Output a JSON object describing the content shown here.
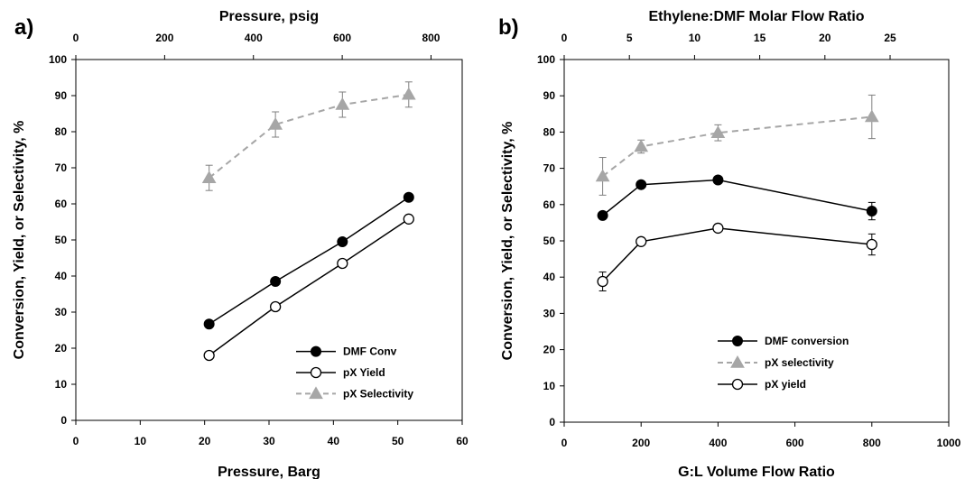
{
  "chart_data": [
    {
      "type": "line",
      "panel_label": "a)",
      "xlabel": "Pressure, Barg",
      "ylabel": "Conversion, Yield, or Selectivity, %",
      "xlim": [
        0,
        60
      ],
      "ylim": [
        0,
        100
      ],
      "xticks": [
        0,
        10,
        20,
        30,
        40,
        50,
        60
      ],
      "yticks": [
        0,
        10,
        20,
        30,
        40,
        50,
        60,
        70,
        80,
        90,
        100
      ],
      "x2label": "Pressure, psig",
      "x2lim": [
        0,
        870.2
      ],
      "x2ticks": [
        0,
        200,
        400,
        600,
        800
      ],
      "legend_position": "lower-right",
      "series": [
        {
          "name": "DMF Conv",
          "style": "filled-circle",
          "color": "#000000",
          "dashed": false,
          "x": [
            20.7,
            31.0,
            41.4,
            51.7
          ],
          "y": [
            26.7,
            38.5,
            49.5,
            61.8
          ],
          "err": [
            0,
            0,
            0,
            0
          ]
        },
        {
          "name": "pX Yield",
          "style": "open-circle",
          "color": "#000000",
          "dashed": false,
          "x": [
            20.7,
            31.0,
            41.4,
            51.7
          ],
          "y": [
            18.0,
            31.5,
            43.5,
            55.8
          ],
          "err": [
            0,
            0,
            0,
            0
          ]
        },
        {
          "name": "pX Selectivity",
          "style": "triangle",
          "color": "#a6a6a6",
          "dashed": true,
          "x": [
            20.7,
            31.0,
            41.4,
            51.7
          ],
          "y": [
            67.2,
            82.0,
            87.5,
            90.3
          ],
          "err": [
            3.5,
            3.5,
            3.5,
            3.5
          ]
        }
      ]
    },
    {
      "type": "line",
      "panel_label": "b)",
      "xlabel": "G:L Volume Flow Ratio",
      "ylabel": "Conversion, Yield, or Selectivity, %",
      "xlim": [
        0,
        1000
      ],
      "ylim": [
        0,
        100
      ],
      "xticks": [
        0,
        200,
        400,
        600,
        800,
        1000
      ],
      "yticks": [
        0,
        10,
        20,
        30,
        40,
        50,
        60,
        70,
        80,
        90,
        100
      ],
      "x2label": "Ethylene:DMF Molar Flow Ratio",
      "x2lim": [
        0,
        29.5
      ],
      "x2ticks": [
        0,
        5,
        10,
        15,
        20,
        25
      ],
      "legend_position": "lower-right",
      "series": [
        {
          "name": "DMF conversion",
          "style": "filled-circle",
          "color": "#000000",
          "dashed": false,
          "x": [
            100,
            200,
            400,
            800
          ],
          "y": [
            57.0,
            65.5,
            66.8,
            58.2
          ],
          "err": [
            0,
            0,
            0,
            2.4
          ]
        },
        {
          "name": "pX selectivity",
          "style": "triangle",
          "color": "#a6a6a6",
          "dashed": true,
          "x": [
            100,
            200,
            400,
            800
          ],
          "y": [
            67.8,
            76.0,
            79.8,
            84.2
          ],
          "err": [
            5.2,
            1.8,
            2.2,
            6.0
          ]
        },
        {
          "name": "pX yield",
          "style": "open-circle",
          "color": "#000000",
          "dashed": false,
          "x": [
            100,
            200,
            400,
            800
          ],
          "y": [
            38.8,
            49.8,
            53.5,
            49.0
          ],
          "err": [
            2.6,
            0,
            0,
            2.9
          ]
        }
      ]
    }
  ]
}
